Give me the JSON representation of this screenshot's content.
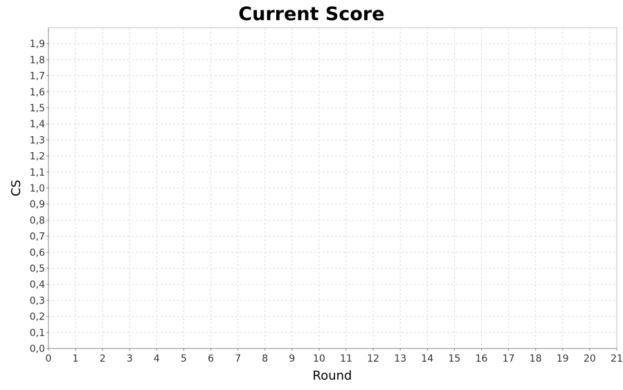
{
  "chart_data": {
    "type": "line",
    "title": "Current Score",
    "xlabel": "Round",
    "ylabel": "CS",
    "xlim": [
      0,
      21
    ],
    "ylim": [
      0,
      2.0
    ],
    "x_ticks": [
      "0",
      "1",
      "2",
      "3",
      "4",
      "5",
      "6",
      "7",
      "8",
      "9",
      "10",
      "11",
      "12",
      "13",
      "14",
      "15",
      "16",
      "17",
      "18",
      "19",
      "20",
      "21"
    ],
    "y_ticks": [
      "0,0",
      "0,1",
      "0,2",
      "0,3",
      "0,4",
      "0,5",
      "0,6",
      "0,7",
      "0,8",
      "0,9",
      "1,0",
      "1,1",
      "1,2",
      "1,3",
      "1,4",
      "1,5",
      "1,6",
      "1,7",
      "1,8",
      "1,9"
    ],
    "series": [],
    "grid": true,
    "colors": {
      "grid": "#dddddd",
      "axis": "#888888",
      "border": "#c0c0c0"
    }
  }
}
